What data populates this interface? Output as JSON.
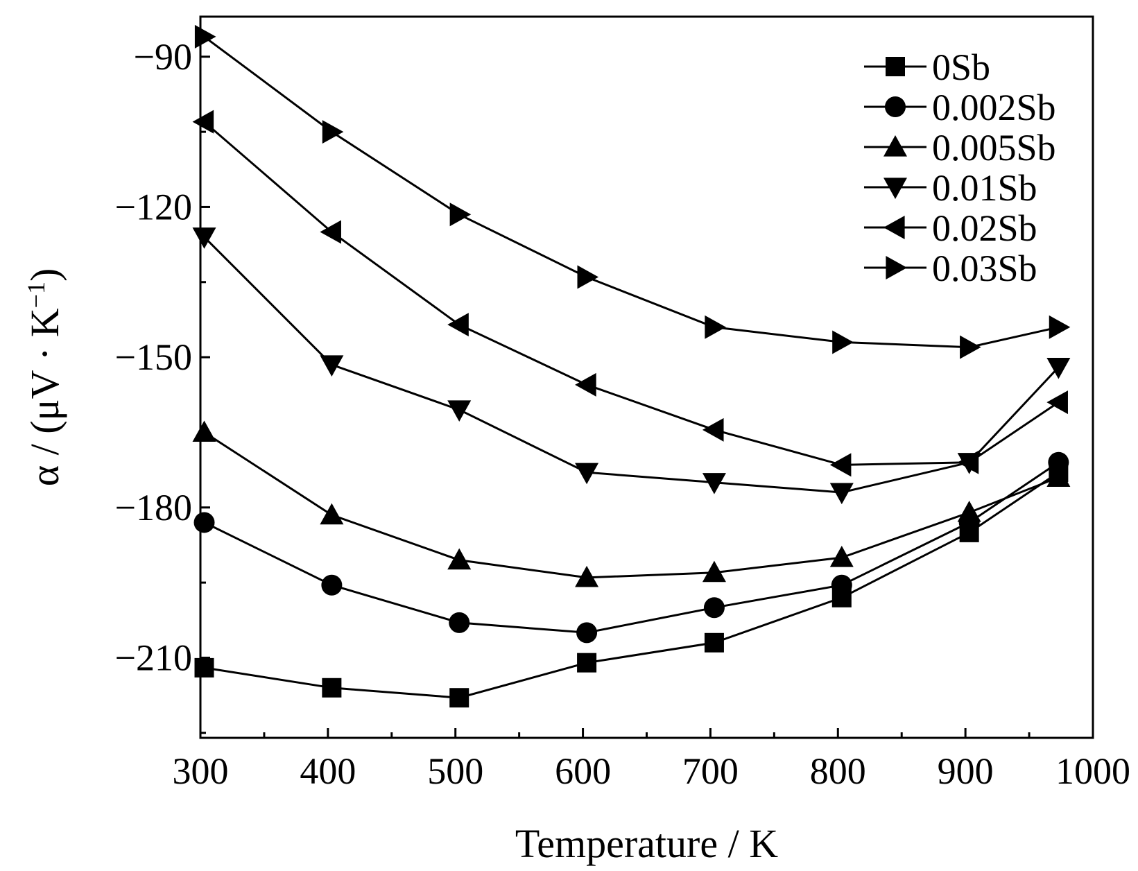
{
  "chart_data": {
    "type": "line",
    "title": "",
    "xlabel": "Temperature / K",
    "ylabel_parts": {
      "prefix": "α / (μV · K",
      "superscript": "−1",
      "suffix": ")"
    },
    "xlim": [
      300,
      1000
    ],
    "ylim": [
      -226,
      -82
    ],
    "x_ticks": [
      300,
      400,
      500,
      600,
      700,
      800,
      900,
      1000
    ],
    "x_tick_labels": [
      "300",
      "400",
      "500",
      "600",
      "700",
      "800",
      "900",
      "1000"
    ],
    "y_ticks": [
      -90,
      -120,
      -150,
      -180,
      -210
    ],
    "y_tick_labels": [
      "−90",
      "−120",
      "−150",
      "−180",
      "−210"
    ],
    "grid": false,
    "legend_position": "top-right",
    "series": [
      {
        "name": "0Sb",
        "marker": "square",
        "x": [
          303,
          403,
          503,
          603,
          703,
          803,
          903,
          973
        ],
        "y": [
          -212,
          -216,
          -218,
          -211,
          -207,
          -198,
          -185,
          -173
        ]
      },
      {
        "name": "0.002Sb",
        "marker": "circle",
        "x": [
          303,
          403,
          503,
          603,
          703,
          803,
          903,
          973
        ],
        "y": [
          -183,
          -195.5,
          -203,
          -205,
          -200,
          -195.5,
          -183,
          -171
        ]
      },
      {
        "name": "0.005Sb",
        "marker": "triangle-up",
        "x": [
          303,
          403,
          503,
          603,
          703,
          803,
          903,
          973
        ],
        "y": [
          -165,
          -181.5,
          -190.5,
          -194,
          -193,
          -190,
          -181,
          -174
        ]
      },
      {
        "name": "0.01Sb",
        "marker": "triangle-down",
        "x": [
          303,
          403,
          503,
          603,
          703,
          803,
          903,
          973
        ],
        "y": [
          -126,
          -151.5,
          -160.5,
          -173,
          -175,
          -177,
          -171,
          -152
        ]
      },
      {
        "name": "0.02Sb",
        "marker": "triangle-left",
        "x": [
          303,
          403,
          503,
          603,
          703,
          803,
          903,
          973
        ],
        "y": [
          -103,
          -125,
          -143.5,
          -155.5,
          -164.5,
          -171.5,
          -171,
          -159
        ]
      },
      {
        "name": "0.03Sb",
        "marker": "triangle-right",
        "x": [
          303,
          403,
          503,
          603,
          703,
          803,
          903,
          973
        ],
        "y": [
          -86,
          -105,
          -121.5,
          -134,
          -144,
          -147,
          -148,
          -144
        ]
      }
    ]
  }
}
